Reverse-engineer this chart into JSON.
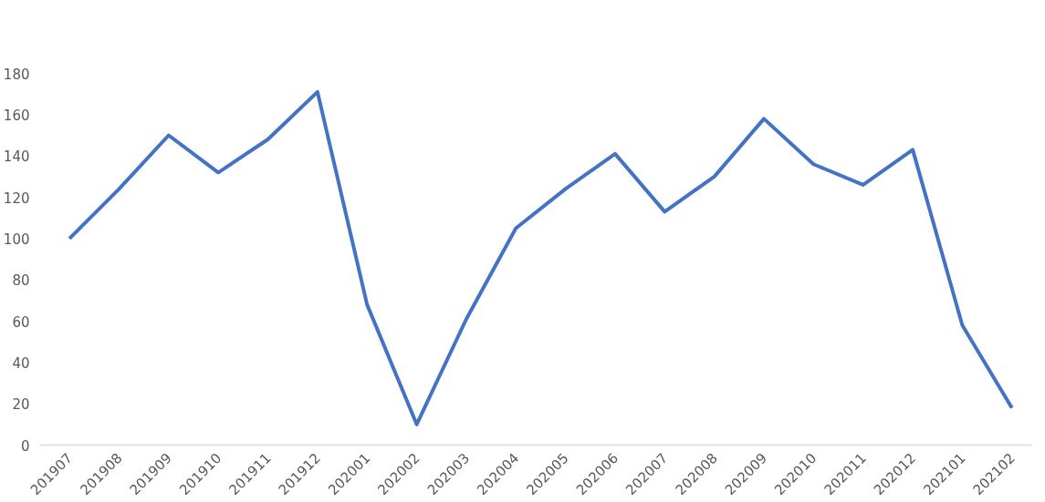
{
  "chart_data": {
    "type": "line",
    "categories": [
      "201907",
      "201908",
      "201909",
      "201910",
      "201911",
      "201912",
      "202001",
      "202002",
      "202003",
      "202004",
      "202005",
      "202006",
      "202007",
      "202008",
      "202009",
      "202010",
      "202011",
      "202012",
      "202101",
      "202102"
    ],
    "series": [
      {
        "color": "#4472c4",
        "values": [
          100,
          124,
          150,
          132,
          148,
          171,
          68,
          10,
          61,
          105,
          124,
          141,
          113,
          130,
          158,
          136,
          126,
          143,
          58,
          18
        ]
      }
    ],
    "ylim": [
      0,
      180
    ],
    "yticks": [
      0,
      20,
      40,
      60,
      80,
      100,
      120,
      140,
      160,
      180
    ],
    "grid": false,
    "marker": "none",
    "line_style": "solid"
  }
}
